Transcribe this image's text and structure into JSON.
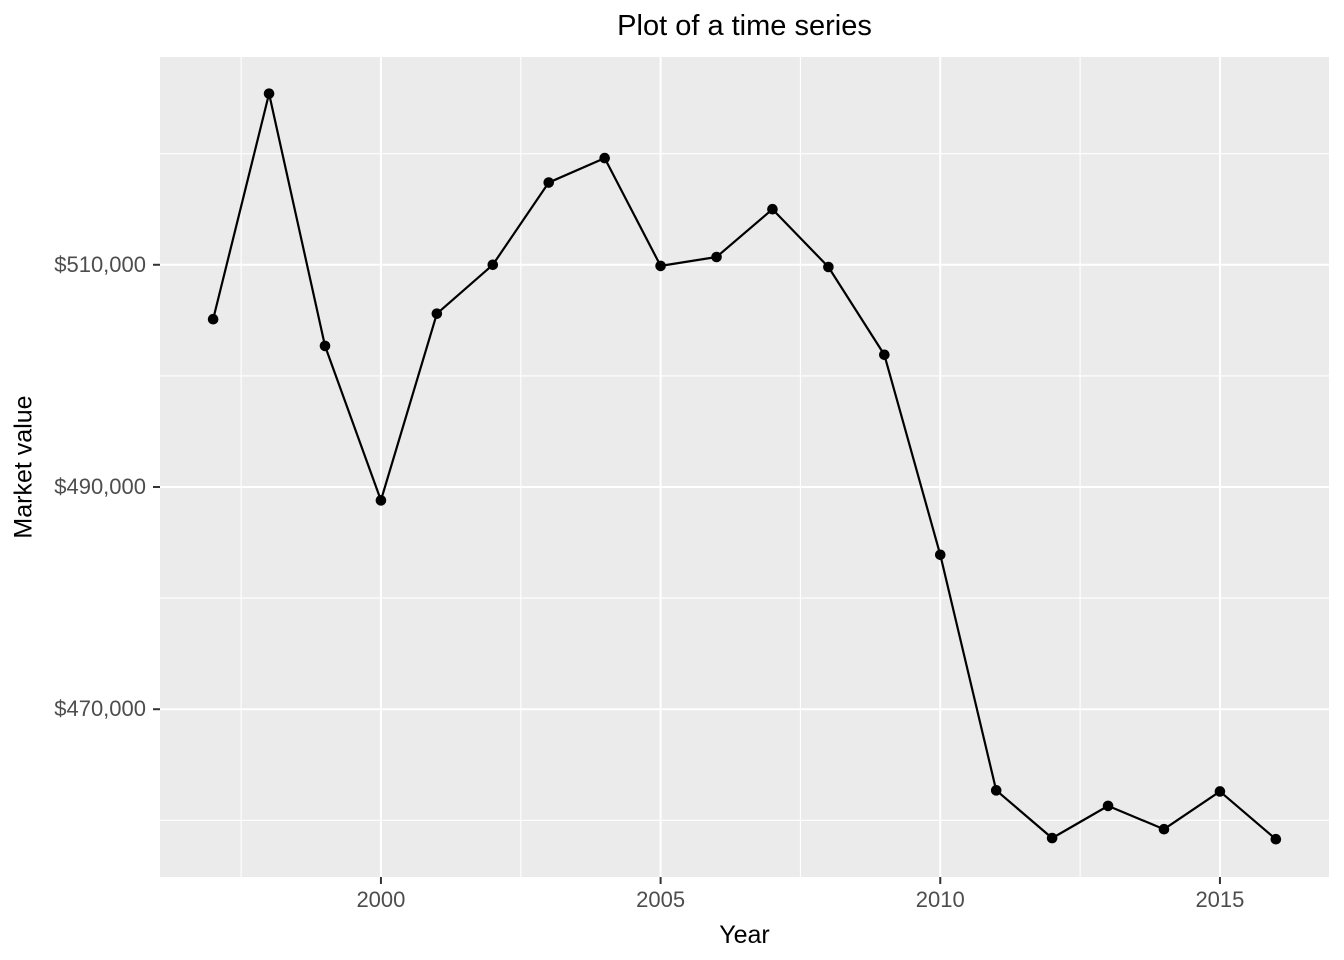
{
  "chart_data": {
    "type": "line",
    "title": "Plot of a time series",
    "xlabel": "Year",
    "ylabel": "Market value",
    "x": [
      1997,
      1998,
      1999,
      2000,
      2001,
      2002,
      2003,
      2004,
      2005,
      2006,
      2007,
      2008,
      2009,
      2010,
      2011,
      2012,
      2013,
      2014,
      2015,
      2016
    ],
    "values": [
      505100,
      525400,
      502700,
      488800,
      505600,
      510000,
      517400,
      519600,
      509900,
      510700,
      515000,
      509800,
      501900,
      483900,
      462700,
      458400,
      461300,
      459200,
      462600,
      458300
    ],
    "xlim": [
      1996.05,
      2016.95
    ],
    "ylim": [
      454900,
      528700
    ],
    "x_ticks": [
      {
        "value": 2000,
        "label": "2000"
      },
      {
        "value": 2005,
        "label": "2005"
      },
      {
        "value": 2010,
        "label": "2010"
      },
      {
        "value": 2015,
        "label": "2015"
      }
    ],
    "y_ticks": [
      {
        "value": 470000,
        "label": "$470,000"
      },
      {
        "value": 490000,
        "label": "$490,000"
      },
      {
        "value": 510000,
        "label": "$510,000"
      }
    ],
    "x_minor": [
      1997.5,
      2002.5,
      2007.5,
      2012.5
    ],
    "y_minor": [
      460000,
      480000,
      500000,
      520000
    ],
    "grid": "major+minor",
    "legend": "none",
    "marker": "filled-circle",
    "colors": {
      "panel_background": "#EBEBEB",
      "grid_major": "#FFFFFF",
      "grid_minor": "#FFFFFF",
      "line": "#000000",
      "point": "#000000",
      "tick_mark": "#333333",
      "tick_label": "#4D4D4D",
      "title_text": "#000000",
      "axis_title_text": "#000000",
      "page_background": "#FFFFFF"
    }
  }
}
